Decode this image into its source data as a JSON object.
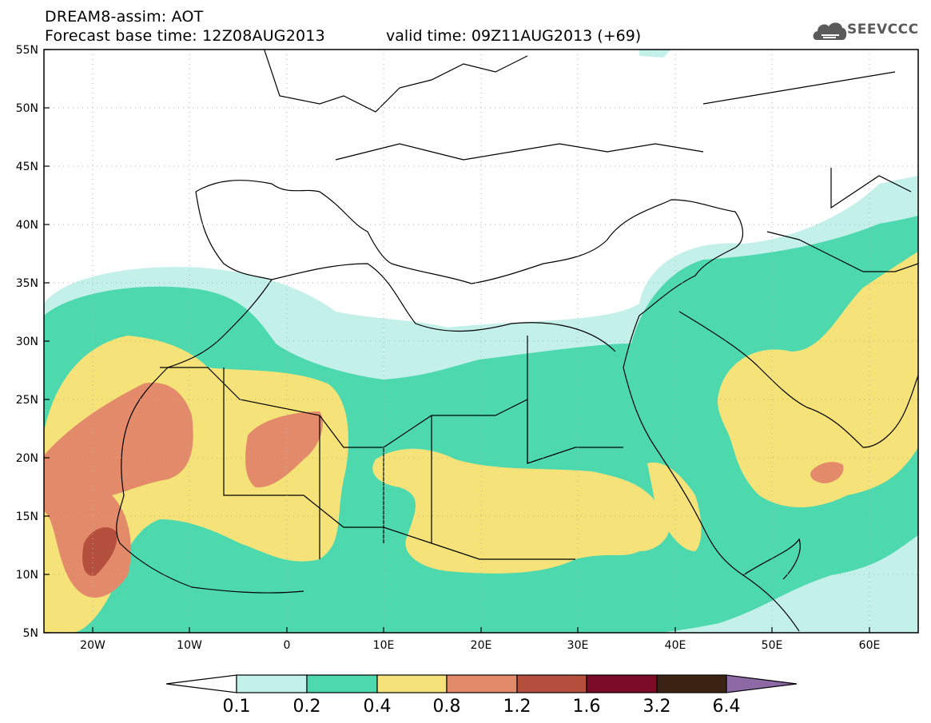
{
  "header": {
    "line1": "DREAM8-assim: AOT",
    "line2": "Forecast base time: 12Z08AUG2013",
    "line3": "valid time: 09Z11AUG2013 (+69)",
    "logo_text": "SEEVCCC"
  },
  "map": {
    "lon_range": [
      -25,
      65
    ],
    "lat_range": [
      5,
      55
    ],
    "lat_labels": [
      "5N",
      "10N",
      "15N",
      "20N",
      "25N",
      "30N",
      "35N",
      "40N",
      "45N",
      "50N",
      "55N"
    ],
    "lon_labels": [
      "20W",
      "10W",
      "0",
      "10E",
      "20E",
      "30E",
      "40E",
      "50E",
      "60E"
    ],
    "field": "AOT (aerosol optical thickness)"
  },
  "colorbar": {
    "labels": [
      "0.1",
      "0.2",
      "0.4",
      "0.8",
      "1.2",
      "1.6",
      "3.2",
      "6.4"
    ],
    "colors": [
      "#ffffff",
      "#c4f0ea",
      "#4ed8ad",
      "#f5e37a",
      "#e38a6a",
      "#b5503f",
      "#7c0b27",
      "#3b2313",
      "#8d6aa5"
    ]
  }
}
